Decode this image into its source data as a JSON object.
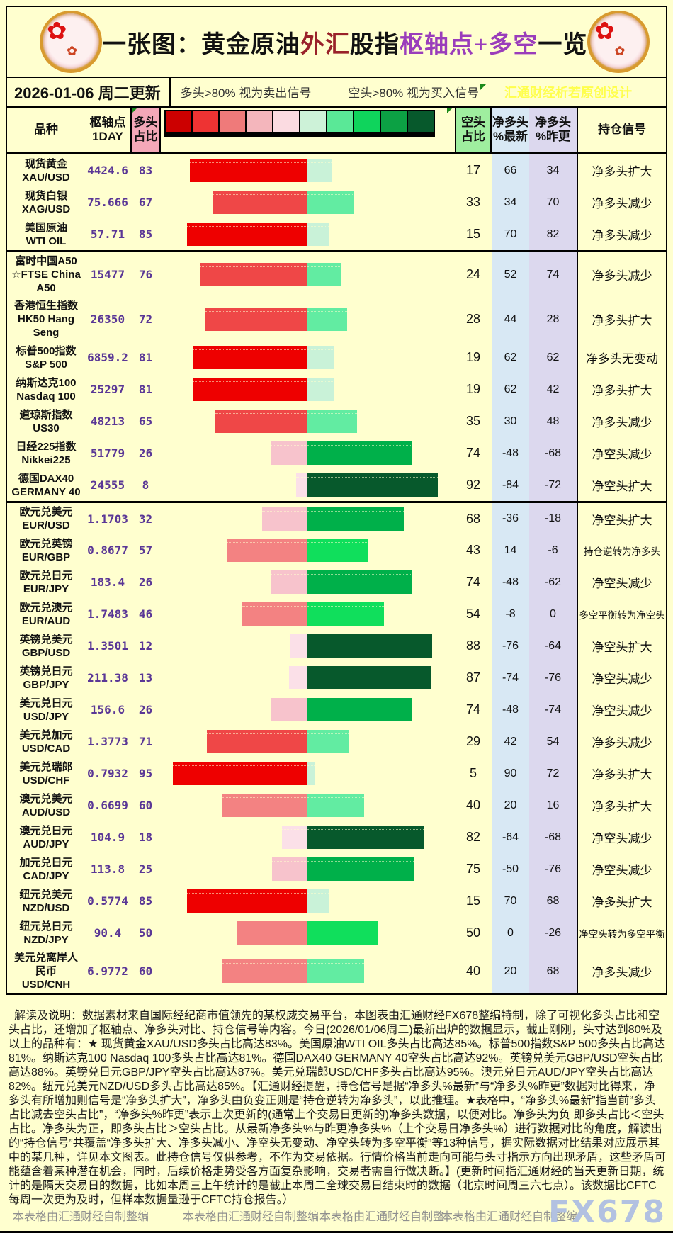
{
  "banner": {
    "title_segments": [
      {
        "text": "一张图：黄金原油",
        "color": "black"
      },
      {
        "text": "外汇",
        "color": "red"
      },
      {
        "text": "股指",
        "color": "black"
      },
      {
        "text": "枢轴点+多空",
        "color": "purple"
      },
      {
        "text": "一览",
        "color": "black"
      }
    ]
  },
  "daterow": {
    "date": "2026-01-06 周二更新",
    "long_signal": "多头>80% 视为卖出信号",
    "short_signal": "空头>80% 视为买入信号",
    "watermark": "汇通财经析若原创设计"
  },
  "header": {
    "col_product": "品种",
    "col_pivot_l1": "枢轴点",
    "col_pivot_l2": "1DAY",
    "col_long_l1": "多头",
    "col_long_l2": "占比",
    "col_short_l1": "空头",
    "col_short_l2": "占比",
    "col_latest_l1": "净多头",
    "col_latest_l2": "%最新",
    "col_prev_l1": "净多头",
    "col_prev_l2": "%昨更",
    "col_signal": "持仓信号"
  },
  "legend_colors": [
    "#cc0000",
    "#ee3333",
    "#ef7a7a",
    "#f4b6bc",
    "#fbdbe1",
    "#cdf2d8",
    "#5ae897",
    "#0fd45c",
    "#0ca144",
    "#07592c"
  ],
  "bar_palette": {
    "long": [
      {
        "gt": 80,
        "color": "#ee0000"
      },
      {
        "gt": 60,
        "color": "#ef4747"
      },
      {
        "gt": 40,
        "color": "#f38282"
      },
      {
        "gt": 20,
        "color": "#f7c3cc"
      },
      {
        "gt": -1,
        "color": "#fbe0e8"
      }
    ],
    "short": [
      {
        "gt": 80,
        "color": "#07592c"
      },
      {
        "gt": 60,
        "color": "#00b04a"
      },
      {
        "gt": 40,
        "color": "#10df5c"
      },
      {
        "gt": 20,
        "color": "#62eca2"
      },
      {
        "gt": -1,
        "color": "#c9f2d8"
      }
    ]
  },
  "colors": {
    "page_bg": "#ffffcf",
    "header_long_bg": "#f4a8b8",
    "header_short_bg": "#9fee9f",
    "col_latest_bg": "#d8e8f4",
    "col_prev_bg": "#dcd8ee",
    "value_purple": "#5a3796",
    "watermark_yellow": "#ffff4d",
    "fx678_watermark": "#b2c1e1",
    "credit_gray": "#8f8f8f",
    "title_red": "#99222a",
    "title_purple": "#9a3dbb"
  },
  "rows": [
    {
      "name_lines": [
        "现货黄金",
        "XAU/USD"
      ],
      "pivot": "4424.6",
      "long_pct": 83,
      "short_pct": 17,
      "net_latest": 66,
      "net_prev": 34,
      "signal": "净多头扩大",
      "group_start": false
    },
    {
      "name_lines": [
        "现货白银",
        "XAG/USD"
      ],
      "pivot": "75.666",
      "long_pct": 67,
      "short_pct": 33,
      "net_latest": 34,
      "net_prev": 70,
      "signal": "净多头减少",
      "group_start": false
    },
    {
      "name_lines": [
        "美国原油",
        "WTI OIL"
      ],
      "pivot": "57.71",
      "long_pct": 85,
      "short_pct": 15,
      "net_latest": 70,
      "net_prev": 82,
      "signal": "净多头减少",
      "group_start": false
    },
    {
      "name_lines": [
        "富时中国A50",
        "☆FTSE China",
        "A50"
      ],
      "pivot": "15477",
      "long_pct": 76,
      "short_pct": 24,
      "net_latest": 52,
      "net_prev": 74,
      "signal": "净多头减少",
      "group_start": true
    },
    {
      "name_lines": [
        "香港恒生指数",
        "HK50 Hang",
        "Seng"
      ],
      "pivot": "26350",
      "long_pct": 72,
      "short_pct": 28,
      "net_latest": 44,
      "net_prev": 28,
      "signal": "净多头扩大",
      "group_start": false
    },
    {
      "name_lines": [
        "标普500指数",
        "S&P 500"
      ],
      "pivot": "6859.2",
      "long_pct": 81,
      "short_pct": 19,
      "net_latest": 62,
      "net_prev": 62,
      "signal": "净多头无变动",
      "group_start": false
    },
    {
      "name_lines": [
        "纳斯达克100",
        "Nasdaq 100"
      ],
      "pivot": "25297",
      "long_pct": 81,
      "short_pct": 19,
      "net_latest": 62,
      "net_prev": 42,
      "signal": "净多头扩大",
      "group_start": false
    },
    {
      "name_lines": [
        "道琼斯指数",
        "US30"
      ],
      "pivot": "48213",
      "long_pct": 65,
      "short_pct": 35,
      "net_latest": 30,
      "net_prev": 48,
      "signal": "净多头减少",
      "group_start": false
    },
    {
      "name_lines": [
        "日经225指数",
        "Nikkei225"
      ],
      "pivot": "51779",
      "long_pct": 26,
      "short_pct": 74,
      "net_latest": -48,
      "net_prev": -68,
      "signal": "净空头减少",
      "group_start": false
    },
    {
      "name_lines": [
        "德国DAX40",
        "GERMANY 40"
      ],
      "pivot": "24555",
      "long_pct": 8,
      "short_pct": 92,
      "net_latest": -84,
      "net_prev": -72,
      "signal": "净空头扩大",
      "group_start": false
    },
    {
      "name_lines": [
        "欧元兑美元",
        "EUR/USD"
      ],
      "pivot": "1.1703",
      "long_pct": 32,
      "short_pct": 68,
      "net_latest": -36,
      "net_prev": -18,
      "signal": "净空头扩大",
      "group_start": true
    },
    {
      "name_lines": [
        "欧元兑英镑",
        "EUR/GBP"
      ],
      "pivot": "0.8677",
      "long_pct": 57,
      "short_pct": 43,
      "net_latest": 14,
      "net_prev": -6,
      "signal": "持仓逆转为净多头",
      "group_start": false
    },
    {
      "name_lines": [
        "欧元兑日元",
        "EUR/JPY"
      ],
      "pivot": "183.4",
      "long_pct": 26,
      "short_pct": 74,
      "net_latest": -48,
      "net_prev": -62,
      "signal": "净空头减少",
      "group_start": false
    },
    {
      "name_lines": [
        "欧元兑澳元",
        "EUR/AUD"
      ],
      "pivot": "1.7483",
      "long_pct": 46,
      "short_pct": 54,
      "net_latest": -8,
      "net_prev": 0,
      "signal": "多空平衡转为净空头",
      "group_start": false
    },
    {
      "name_lines": [
        "英镑兑美元",
        "GBP/USD"
      ],
      "pivot": "1.3501",
      "long_pct": 12,
      "short_pct": 88,
      "net_latest": -76,
      "net_prev": -64,
      "signal": "净空头扩大",
      "group_start": false
    },
    {
      "name_lines": [
        "英镑兑日元",
        "GBP/JPY"
      ],
      "pivot": "211.38",
      "long_pct": 13,
      "short_pct": 87,
      "net_latest": -74,
      "net_prev": -76,
      "signal": "净空头减少",
      "group_start": false
    },
    {
      "name_lines": [
        "美元兑日元",
        "USD/JPY"
      ],
      "pivot": "156.6",
      "long_pct": 26,
      "short_pct": 74,
      "net_latest": -48,
      "net_prev": -74,
      "signal": "净空头减少",
      "group_start": false
    },
    {
      "name_lines": [
        "美元兑加元",
        "USD/CAD"
      ],
      "pivot": "1.3773",
      "long_pct": 71,
      "short_pct": 29,
      "net_latest": 42,
      "net_prev": 54,
      "signal": "净多头减少",
      "group_start": false
    },
    {
      "name_lines": [
        "美元兑瑞郎",
        "USD/CHF"
      ],
      "pivot": "0.7932",
      "long_pct": 95,
      "short_pct": 5,
      "net_latest": 90,
      "net_prev": 72,
      "signal": "净多头扩大",
      "group_start": false
    },
    {
      "name_lines": [
        "澳元兑美元",
        "AUD/USD"
      ],
      "pivot": "0.6699",
      "long_pct": 60,
      "short_pct": 40,
      "net_latest": 20,
      "net_prev": 16,
      "signal": "净多头扩大",
      "group_start": false
    },
    {
      "name_lines": [
        "澳元兑日元",
        "AUD/JPY"
      ],
      "pivot": "104.9",
      "long_pct": 18,
      "short_pct": 82,
      "net_latest": -64,
      "net_prev": -68,
      "signal": "净空头减少",
      "group_start": false
    },
    {
      "name_lines": [
        "加元兑日元",
        "CAD/JPY"
      ],
      "pivot": "113.8",
      "long_pct": 25,
      "short_pct": 75,
      "net_latest": -50,
      "net_prev": -76,
      "signal": "净空头减少",
      "group_start": false
    },
    {
      "name_lines": [
        "纽元兑美元",
        "NZD/USD"
      ],
      "pivot": "0.5774",
      "long_pct": 85,
      "short_pct": 15,
      "net_latest": 70,
      "net_prev": 68,
      "signal": "净多头扩大",
      "group_start": false
    },
    {
      "name_lines": [
        "纽元兑日元",
        "NZD/JPY"
      ],
      "pivot": "90.4",
      "long_pct": 50,
      "short_pct": 50,
      "net_latest": 0,
      "net_prev": -26,
      "signal": "净空头转为多空平衡",
      "group_start": false
    },
    {
      "name_lines": [
        "美元兑离岸人",
        "民币",
        "USD/CNH"
      ],
      "pivot": "6.9772",
      "long_pct": 60,
      "short_pct": 40,
      "net_latest": 20,
      "net_prev": 68,
      "signal": "净多头减少",
      "group_start": false
    }
  ],
  "explain": "解读及说明：数据素材来自国际经纪商市值领先的某权威交易平台，本图表由汇通财经FX678整编特制，除了可视化多头占比和空头占比，还增加了枢轴点、净多头对比、持仓信号等内容。今日(2026/01/06周二)最新出炉的数据显示，截止刚刚，头寸达到80%及以上的品种有：★ 现货黄金XAU/USD多头占比高达83%。美国原油WTI OIL多头占比高达85%。标普500指数S&P 500多头占比高达81%。纳斯达克100 Nasdaq 100多头占比高达81%。德国DAX40 GERMANY 40空头占比高达92%。英镑兑美元GBP/USD空头占比高达88%。英镑兑日元GBP/JPY空头占比高达87%。美元兑瑞郎USD/CHF多头占比高达95%。澳元兑日元AUD/JPY空头占比高达82%。纽元兑美元NZD/USD多头占比高达85%。【汇通财经提醒，持仓信号是据“净多头%最新”与“净多头%昨更”数据对比得来，净多头有所增加则信号是“净多头扩大”，净多头由负变正则是“持仓逆转为净多头”，以此推理。★表格中，“净多头%最新”指当前“多头占比减去空头占比”，“净多头%昨更”表示上次更新的(通常上个交易日更新的)净多头数据，以便对比。净多头为负 即多头占比＜空头占比。净多头为正，即多头占比＞空头占比。从最新净多头%与昨更净多头%（上个交易日净多头%）进行数据对比的角度，解读出的“持仓信号”共覆盖“净多头扩大、净多头减小、净空头无变动、净空头转为多空平衡”等13种信号，据实际数据对比结果对应展示其中的某几种，详见本文图表。此持仓信号仅供参考，不作为交易依据。行情价格当前走向可能与头寸指示方向出现矛盾，这些矛盾可能蕴含着某种潜在机会，同时，后续价格走势受各方面复杂影响，交易者需自行做决断。】(更新时间指汇通财经的当天更新日期，统计的是隔天交易日的数据，比如本周三上午统计的是截止本周二全球交易日结束时的数据（北京时间周三六七点）。该数据比CFTC每周一次更为及时，但样本数据量逊于CFTC持仓报告。）",
  "footer": {
    "credits": [
      "本表格由汇通财经自制整编",
      "本表格由汇通财经自制整编",
      "本表格由汇通财经自制整",
      "本表格由汇通财经自制整编"
    ],
    "watermark": "FX678"
  },
  "chart_data": {
    "type": "bar",
    "title": "一张图：黄金原油外汇股指枢轴点+多空一览",
    "subtitle": "2026-01-06 周二更新",
    "layout": "diverging stacked horizontal bars; red segment = 多头占比 (left of center), green segment = 空头占比 (right of center); each pair sums to 100",
    "legend_note": [
      "多头>80% 视为卖出信号",
      "空头>80% 视为买入信号"
    ],
    "categories": [
      "XAU/USD",
      "XAG/USD",
      "WTI OIL",
      "FTSE China A50",
      "HK50 Hang Seng",
      "S&P 500",
      "Nasdaq 100",
      "US30",
      "Nikkei225",
      "GERMANY 40",
      "EUR/USD",
      "EUR/GBP",
      "EUR/JPY",
      "EUR/AUD",
      "GBP/USD",
      "GBP/JPY",
      "USD/JPY",
      "USD/CAD",
      "USD/CHF",
      "AUD/USD",
      "AUD/JPY",
      "CAD/JPY",
      "NZD/USD",
      "NZD/JPY",
      "USD/CNH"
    ],
    "series": [
      {
        "name": "枢轴点1DAY",
        "values": [
          4424.6,
          75.666,
          57.71,
          15477,
          26350,
          6859.2,
          25297,
          48213,
          51779,
          24555,
          1.1703,
          0.8677,
          183.4,
          1.7483,
          1.3501,
          211.38,
          156.6,
          1.3773,
          0.7932,
          0.6699,
          104.9,
          113.8,
          0.5774,
          90.4,
          6.9772
        ]
      },
      {
        "name": "多头占比",
        "values": [
          83,
          67,
          85,
          76,
          72,
          81,
          81,
          65,
          26,
          8,
          32,
          57,
          26,
          46,
          12,
          13,
          26,
          71,
          95,
          60,
          18,
          25,
          85,
          50,
          60
        ]
      },
      {
        "name": "空头占比",
        "values": [
          17,
          33,
          15,
          24,
          28,
          19,
          19,
          35,
          74,
          92,
          68,
          43,
          74,
          54,
          88,
          87,
          74,
          29,
          5,
          40,
          82,
          75,
          15,
          50,
          40
        ]
      },
      {
        "name": "净多头%最新",
        "values": [
          66,
          34,
          70,
          52,
          44,
          62,
          62,
          30,
          -48,
          -84,
          -36,
          14,
          -48,
          -8,
          -76,
          -74,
          -48,
          42,
          90,
          20,
          -64,
          -50,
          70,
          0,
          20
        ]
      },
      {
        "name": "净多头%昨更",
        "values": [
          34,
          70,
          82,
          74,
          28,
          62,
          42,
          48,
          -68,
          -72,
          -18,
          -6,
          -62,
          0,
          -64,
          -76,
          -74,
          54,
          72,
          16,
          -68,
          -76,
          68,
          -26,
          68
        ]
      }
    ],
    "signals": [
      "净多头扩大",
      "净多头减少",
      "净多头减少",
      "净多头减少",
      "净多头扩大",
      "净多头无变动",
      "净多头扩大",
      "净多头减少",
      "净空头减少",
      "净空头扩大",
      "净空头扩大",
      "持仓逆转为净多头",
      "净空头减少",
      "多空平衡转为净空头",
      "净空头扩大",
      "净空头减少",
      "净空头减少",
      "净多头减少",
      "净多头扩大",
      "净多头扩大",
      "净空头减少",
      "净空头减少",
      "净多头扩大",
      "净空头转为多空平衡",
      "净多头减少"
    ],
    "xlim": [
      0,
      100
    ],
    "grid": false,
    "legend_position": "top"
  }
}
